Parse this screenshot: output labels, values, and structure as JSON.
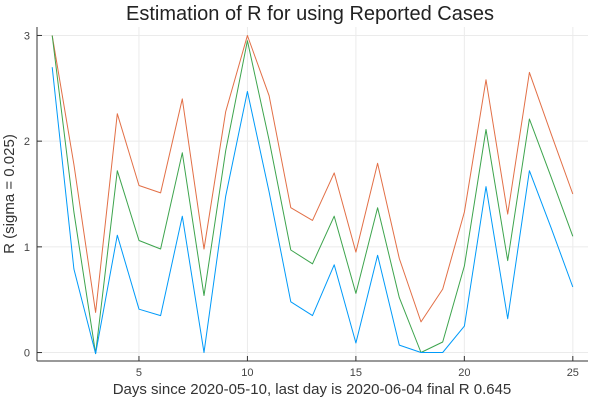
{
  "chart_data": {
    "type": "line",
    "title": "Estimation of R for      using Reported Cases",
    "xlabel": "Days since 2020-05-10, last day is 2020-06-04 final R 0.645",
    "ylabel": "R (sigma = 0.025)",
    "xlim": [
      0.3,
      25.7
    ],
    "ylim": [
      -0.08,
      3.08
    ],
    "xticks": [
      5,
      10,
      15,
      20,
      25
    ],
    "yticks": [
      0,
      1,
      2,
      3
    ],
    "grid": true,
    "legend": "none",
    "x": [
      1,
      2,
      3,
      4,
      5,
      6,
      7,
      8,
      9,
      10,
      11,
      12,
      13,
      14,
      15,
      16,
      17,
      18,
      19,
      20,
      21,
      22,
      23,
      24,
      25
    ],
    "series": [
      {
        "color": "#e26f46",
        "values": [
          3.0,
          1.78,
          0.38,
          2.26,
          1.58,
          1.51,
          2.4,
          0.98,
          2.28,
          3.0,
          2.43,
          1.37,
          1.25,
          1.7,
          0.95,
          1.79,
          0.89,
          0.29,
          0.6,
          1.33,
          2.58,
          1.31,
          2.65,
          2.07,
          1.5
        ]
      },
      {
        "color": "#3da44d",
        "values": [
          3.0,
          1.33,
          -0.01,
          1.72,
          1.06,
          0.98,
          1.89,
          0.54,
          1.91,
          2.95,
          2.01,
          0.97,
          0.84,
          1.29,
          0.56,
          1.37,
          0.52,
          0.0,
          0.1,
          0.82,
          2.11,
          0.87,
          2.21,
          1.66,
          1.1
        ]
      },
      {
        "color": "#009af9",
        "values": [
          2.7,
          0.79,
          -0.01,
          1.11,
          0.41,
          0.35,
          1.29,
          0.0,
          1.48,
          2.47,
          1.52,
          0.48,
          0.35,
          0.83,
          0.09,
          0.92,
          0.07,
          0.0,
          0.0,
          0.25,
          1.57,
          0.32,
          1.72,
          1.18,
          0.62
        ]
      }
    ]
  }
}
